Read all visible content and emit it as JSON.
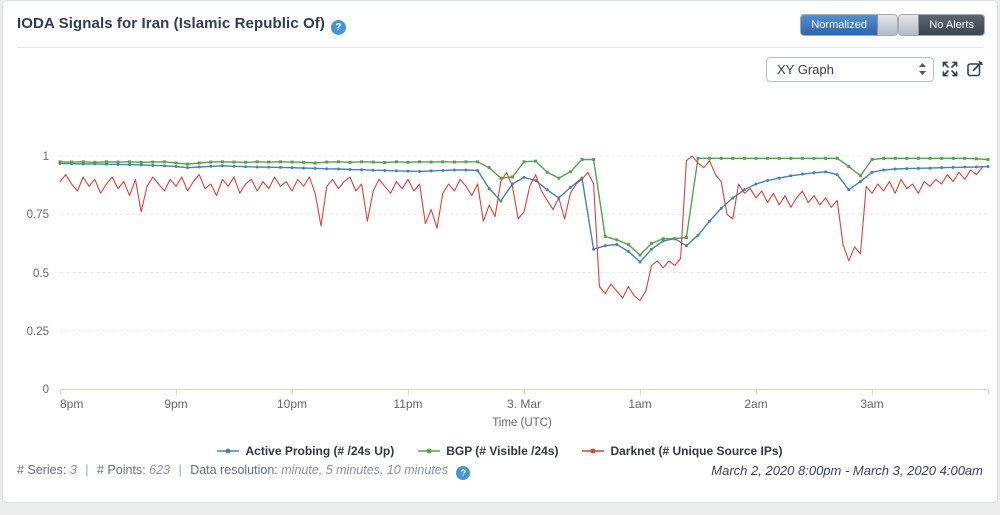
{
  "header": {
    "title": "IODA Signals for Iran (Islamic Republic Of)",
    "help_icon": "?"
  },
  "toggles": {
    "normalized": "Normalized",
    "no_alerts": "No Alerts"
  },
  "controls": {
    "graph_type": "XY Graph"
  },
  "info": {
    "series_label": "# Series:",
    "series_value": "3",
    "separator": "|",
    "points_label": "# Points:",
    "points_value": "623",
    "resolution_label": "Data resolution:",
    "resolution_value": "minute, 5 minutes, 10 minutes",
    "help_icon": "?"
  },
  "date_range": "March 2, 2020 8:00pm - March 3, 2020 4:00am",
  "colors": {
    "title_navy": "#2e3d50",
    "help_blue": "#4795d9",
    "toggle_blue": "#3d76b4",
    "toggle_dark": "#49545f",
    "axis_line": "#ccd6eb",
    "gridline": "#e4e8ec",
    "tick_text": "#666666"
  },
  "chart_data": {
    "type": "line",
    "title": "",
    "xlabel": "Time (UTC)",
    "x_unit": "hours since March 2, 2020 8:00pm UTC",
    "xlim": [
      0,
      8
    ],
    "ylim": [
      0,
      1
    ],
    "grid": "horizontal dashed",
    "legend_position": "bottom-center",
    "yticks": [
      {
        "label": "1",
        "value": 1
      },
      {
        "label": "0.75",
        "value": 0.75
      },
      {
        "label": "0.5",
        "value": 0.5
      },
      {
        "label": "0.25",
        "value": 0.25
      },
      {
        "label": "0",
        "value": 0
      }
    ],
    "xticks": [
      {
        "label": "8pm",
        "hour": 0
      },
      {
        "label": "9pm",
        "hour": 1
      },
      {
        "label": "10pm",
        "hour": 2
      },
      {
        "label": "11pm",
        "hour": 3
      },
      {
        "label": "3. Mar",
        "hour": 4
      },
      {
        "label": "1am",
        "hour": 5
      },
      {
        "label": "2am",
        "hour": 6
      },
      {
        "label": "3am",
        "hour": 7
      }
    ],
    "series": [
      {
        "name": "Active Probing (# /24s Up)",
        "color": "#4581b5",
        "marker": "circle",
        "stroke_width": 1.4,
        "start": 0,
        "dx": 0.1,
        "values": [
          0.968,
          0.967,
          0.966,
          0.966,
          0.965,
          0.964,
          0.963,
          0.962,
          0.96,
          0.958,
          0.955,
          0.95,
          0.953,
          0.956,
          0.958,
          0.956,
          0.954,
          0.953,
          0.952,
          0.951,
          0.95,
          0.948,
          0.947,
          0.945,
          0.944,
          0.942,
          0.941,
          0.939,
          0.938,
          0.936,
          0.935,
          0.934,
          0.936,
          0.938,
          0.94,
          0.94,
          0.938,
          0.86,
          0.807,
          0.88,
          0.908,
          0.895,
          0.855,
          0.82,
          0.865,
          0.905,
          0.6,
          0.615,
          0.62,
          0.59,
          0.545,
          0.6,
          0.635,
          0.645,
          0.615,
          0.66,
          0.72,
          0.775,
          0.82,
          0.855,
          0.88,
          0.895,
          0.905,
          0.915,
          0.922,
          0.928,
          0.932,
          0.92,
          0.855,
          0.89,
          0.93,
          0.94,
          0.944,
          0.946,
          0.947,
          0.948,
          0.95,
          0.951,
          0.952,
          0.953,
          0.955
        ]
      },
      {
        "name": "BGP (# Visible /24s)",
        "color": "#57a052",
        "marker": "square",
        "stroke_width": 1.4,
        "start": 0,
        "dx": 0.1,
        "values": [
          0.975,
          0.974,
          0.975,
          0.973,
          0.975,
          0.974,
          0.975,
          0.973,
          0.974,
          0.975,
          0.97,
          0.965,
          0.97,
          0.974,
          0.975,
          0.974,
          0.973,
          0.975,
          0.974,
          0.975,
          0.974,
          0.973,
          0.97,
          0.974,
          0.975,
          0.973,
          0.975,
          0.974,
          0.972,
          0.975,
          0.973,
          0.975,
          0.974,
          0.975,
          0.974,
          0.975,
          0.975,
          0.95,
          0.905,
          0.91,
          0.975,
          0.978,
          0.93,
          0.905,
          0.932,
          0.985,
          0.985,
          0.655,
          0.64,
          0.62,
          0.575,
          0.625,
          0.645,
          0.645,
          0.65,
          0.99,
          0.99,
          0.99,
          0.99,
          0.99,
          0.99,
          0.99,
          0.99,
          0.99,
          0.99,
          0.99,
          0.99,
          0.99,
          0.955,
          0.915,
          0.985,
          0.99,
          0.99,
          0.99,
          0.99,
          0.99,
          0.99,
          0.99,
          0.99,
          0.988,
          0.985
        ]
      },
      {
        "name": "Darknet (# Unique Source IPs)",
        "color": "#d2443c",
        "marker": "none",
        "stroke_width": 1.1,
        "start": 0,
        "dx": 0.05,
        "values": [
          0.89,
          0.92,
          0.88,
          0.85,
          0.91,
          0.87,
          0.9,
          0.84,
          0.88,
          0.91,
          0.86,
          0.89,
          0.83,
          0.9,
          0.76,
          0.87,
          0.91,
          0.88,
          0.85,
          0.9,
          0.87,
          0.91,
          0.85,
          0.89,
          0.92,
          0.86,
          0.88,
          0.83,
          0.9,
          0.87,
          0.91,
          0.84,
          0.88,
          0.9,
          0.85,
          0.89,
          0.86,
          0.91,
          0.87,
          0.89,
          0.85,
          0.9,
          0.87,
          0.91,
          0.84,
          0.7,
          0.87,
          0.9,
          0.86,
          0.89,
          0.91,
          0.85,
          0.88,
          0.72,
          0.85,
          0.9,
          0.87,
          0.84,
          0.89,
          0.86,
          0.9,
          0.85,
          0.88,
          0.71,
          0.77,
          0.69,
          0.84,
          0.88,
          0.85,
          0.9,
          0.87,
          0.83,
          0.88,
          0.72,
          0.79,
          0.74,
          0.89,
          0.93,
          0.87,
          0.73,
          0.76,
          0.87,
          0.92,
          0.85,
          0.81,
          0.77,
          0.82,
          0.73,
          0.84,
          0.88,
          0.9,
          0.93,
          0.88,
          0.44,
          0.41,
          0.45,
          0.42,
          0.39,
          0.44,
          0.4,
          0.38,
          0.42,
          0.53,
          0.55,
          0.52,
          0.55,
          0.53,
          0.56,
          0.98,
          1.0,
          0.97,
          0.95,
          0.98,
          0.92,
          0.89,
          0.75,
          0.73,
          0.88,
          0.84,
          0.86,
          0.82,
          0.85,
          0.8,
          0.84,
          0.79,
          0.83,
          0.78,
          0.82,
          0.85,
          0.8,
          0.83,
          0.79,
          0.82,
          0.78,
          0.81,
          0.62,
          0.55,
          0.61,
          0.58,
          0.87,
          0.84,
          0.88,
          0.85,
          0.89,
          0.84,
          0.9,
          0.86,
          0.88,
          0.84,
          0.89,
          0.87,
          0.9,
          0.88,
          0.92,
          0.89,
          0.93,
          0.9,
          0.94,
          0.92,
          0.95
        ]
      }
    ]
  }
}
